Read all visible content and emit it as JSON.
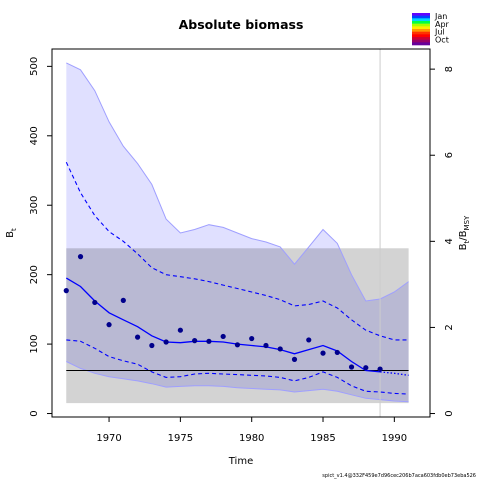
{
  "chart_data": {
    "type": "line",
    "title": "Absolute biomass",
    "xlabel": "Time",
    "ylabel": "B",
    "ylabel_sub": "t",
    "y2label_main": "B",
    "y2label_sub1": "t",
    "y2label_sep": "/B",
    "y2label_sub2": "MSY",
    "xlim": [
      1966.0,
      1992.5
    ],
    "ylim": [
      -5,
      525
    ],
    "y2_scale": 62,
    "xticks": [
      1970,
      1975,
      1980,
      1985,
      1990
    ],
    "yticks": [
      0,
      100,
      200,
      300,
      400,
      500
    ],
    "y2ticks": [
      0,
      2,
      4,
      6,
      8
    ],
    "bmsy": 62,
    "bmsy_band": {
      "x": [
        1967,
        1991
      ],
      "lower": 15,
      "upper": 238
    },
    "vline_x": 1989,
    "legend": {
      "placement": "top-right",
      "labels": [
        "Jan",
        "Apr",
        "Jul",
        "Oct"
      ],
      "colors": [
        "#5F04FF",
        "#0044FF",
        "#00D4FF",
        "#00FF44",
        "#AAFF00",
        "#FFEE00",
        "#FF9900",
        "#FF3300",
        "#FF0000",
        "#CC0033",
        "#990066",
        "#66009A"
      ]
    },
    "footnote": "spict_v1.4@332F459e7d96cec206b7aca603fdb0eb73eba526",
    "colors": {
      "ci_fill": "#e0e0ff",
      "ci_line": "#9f9fff",
      "band": "#d3d3d3",
      "overlap": "#babada",
      "main": "#0000ff",
      "obs": "#00008b",
      "vline": "#cccccc"
    },
    "series": [
      {
        "name": "",
        "x": [
          1967,
          1968,
          1969,
          1970,
          1971,
          1972,
          1973,
          1974,
          1975,
          1976,
          1977,
          1978,
          1979,
          1980,
          1981,
          1982,
          1983,
          1984,
          1985,
          1986,
          1987,
          1988,
          1989,
          1990,
          1991
        ],
        "kind": "outer_upper",
        "values": [
          505,
          495,
          465,
          420,
          385,
          360,
          330,
          280,
          260,
          265,
          272,
          268,
          260,
          252,
          247,
          240,
          215,
          240,
          265,
          245,
          200,
          162,
          165,
          175,
          190
        ]
      },
      {
        "name": "",
        "x": [
          1967,
          1968,
          1969,
          1970,
          1971,
          1972,
          1973,
          1974,
          1975,
          1976,
          1977,
          1978,
          1979,
          1980,
          1981,
          1982,
          1983,
          1984,
          1985,
          1986,
          1987,
          1988,
          1989,
          1990,
          1991
        ],
        "kind": "outer_lower",
        "values": [
          75,
          65,
          58,
          53,
          50,
          47,
          43,
          38,
          39,
          40,
          40,
          39,
          37,
          36,
          35,
          34,
          31,
          33,
          35,
          32,
          27,
          22,
          20,
          18,
          17
        ]
      },
      {
        "name": "",
        "x": [
          1967,
          1968,
          1969,
          1970,
          1971,
          1972,
          1973,
          1974,
          1975,
          1976,
          1977,
          1978,
          1979,
          1980,
          1981,
          1982,
          1983,
          1984,
          1985,
          1986,
          1987,
          1988,
          1989,
          1990,
          1991
        ],
        "kind": "inner_upper",
        "values": [
          362,
          318,
          285,
          262,
          248,
          230,
          210,
          200,
          197,
          194,
          190,
          185,
          180,
          175,
          170,
          164,
          155,
          157,
          162,
          152,
          135,
          120,
          112,
          106,
          106
        ]
      },
      {
        "name": "",
        "x": [
          1967,
          1968,
          1969,
          1970,
          1971,
          1972,
          1973,
          1974,
          1975,
          1976,
          1977,
          1978,
          1979,
          1980,
          1981,
          1982,
          1983,
          1984,
          1985,
          1986,
          1987,
          1988,
          1989,
          1990,
          1991
        ],
        "kind": "inner_lower",
        "values": [
          106,
          104,
          94,
          82,
          76,
          71,
          60,
          52,
          53,
          57,
          58,
          57,
          56,
          55,
          54,
          52,
          47,
          52,
          60,
          52,
          40,
          32,
          31,
          29,
          28
        ]
      },
      {
        "name": "",
        "x": [
          1967,
          1968,
          1969,
          1970,
          1971,
          1972,
          1973,
          1974,
          1975,
          1976,
          1977,
          1978,
          1979,
          1980,
          1981,
          1982,
          1983,
          1984,
          1985,
          1986,
          1987,
          1988,
          1989,
          1990,
          1991
        ],
        "kind": "estimate",
        "values": [
          195,
          183,
          162,
          145,
          135,
          125,
          112,
          103,
          102,
          104,
          104,
          103,
          100,
          98,
          96,
          92,
          86,
          92,
          98,
          90,
          75,
          62,
          60,
          58,
          55
        ],
        "forecast_from": 1989
      },
      {
        "name": "",
        "kind": "observations",
        "x": [
          1967,
          1968,
          1969,
          1970,
          1971,
          1972,
          1973,
          1974,
          1975,
          1976,
          1977,
          1978,
          1979,
          1980,
          1981,
          1982,
          1983,
          1984,
          1985,
          1986,
          1987,
          1988,
          1989
        ],
        "values": [
          177,
          226,
          160,
          128,
          163,
          110,
          98,
          103,
          120,
          105,
          104,
          111,
          99,
          108,
          98,
          93,
          78,
          106,
          87,
          88,
          67,
          66,
          64
        ]
      }
    ]
  }
}
